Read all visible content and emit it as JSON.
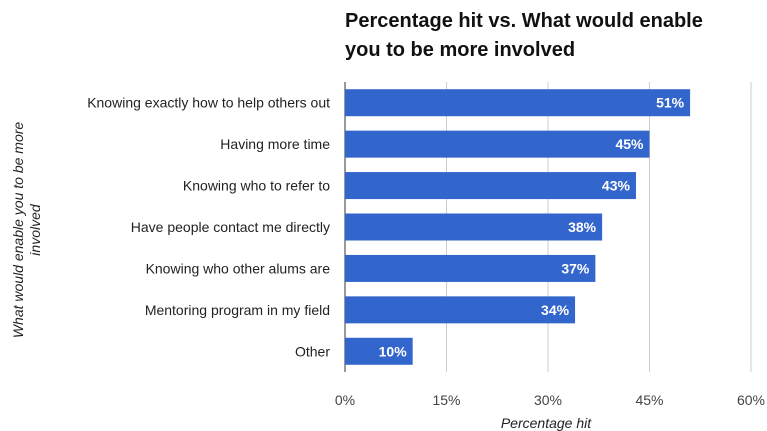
{
  "chart_data": {
    "type": "bar",
    "orientation": "horizontal",
    "title": "Percentage hit vs. What would enable you to be more involved",
    "title_lines": [
      "Percentage hit vs. What would enable",
      "you to be more involved"
    ],
    "xlabel": "Percentage hit",
    "ylabel": "What would enable you to be more involved",
    "ylabel_lines": [
      "What would enable you to be more",
      "involved"
    ],
    "categories": [
      "Knowing exactly how to help others out",
      "Having more time",
      "Knowing who to refer to",
      "Have people contact me directly",
      "Knowing who other alums are",
      "Mentoring program in my field",
      "Other"
    ],
    "values": [
      51,
      45,
      43,
      38,
      37,
      34,
      10
    ],
    "data_labels": [
      "51%",
      "45%",
      "43%",
      "38%",
      "37%",
      "34%",
      "10%"
    ],
    "xlim": [
      0,
      60
    ],
    "xticks": [
      0,
      15,
      30,
      45,
      60
    ],
    "xtick_labels": [
      "0%",
      "15%",
      "30%",
      "45%",
      "60%"
    ],
    "grid": true,
    "legend": "none",
    "bar_color": "#3366cc"
  }
}
